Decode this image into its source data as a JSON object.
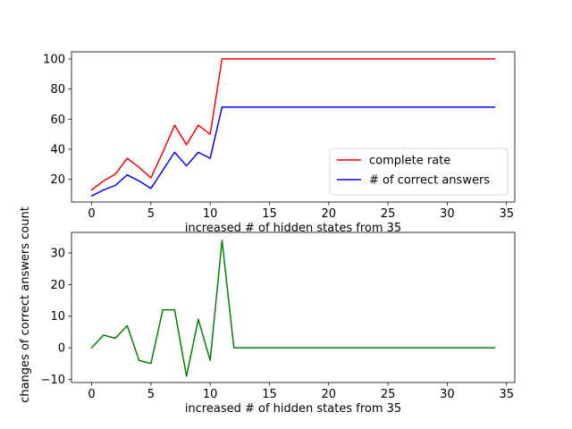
{
  "chart_data": [
    {
      "type": "line",
      "title": "",
      "xlabel": "increased # of hidden states from 35",
      "ylabel": "",
      "xlim": [
        -1.7,
        35.7
      ],
      "ylim": [
        5,
        104.7
      ],
      "xticks": [
        0,
        5,
        10,
        15,
        20,
        25,
        30,
        35
      ],
      "yticks": [
        20,
        40,
        60,
        80,
        100
      ],
      "grid": false,
      "legend": "lower-right",
      "x": [
        0,
        1,
        2,
        3,
        4,
        5,
        6,
        7,
        8,
        9,
        10,
        11,
        12,
        13,
        14,
        15,
        16,
        17,
        18,
        19,
        20,
        21,
        22,
        23,
        24,
        25,
        26,
        27,
        28,
        29,
        30,
        31,
        32,
        33,
        34
      ],
      "series": [
        {
          "name": "complete rate",
          "color": "#ff0000",
          "values": [
            13,
            19,
            23.5,
            34,
            28,
            21,
            38,
            56,
            43,
            56,
            50,
            100,
            100,
            100,
            100,
            100,
            100,
            100,
            100,
            100,
            100,
            100,
            100,
            100,
            100,
            100,
            100,
            100,
            100,
            100,
            100,
            100,
            100,
            100,
            100
          ]
        },
        {
          "name": "# of correct answers",
          "color": "#0000ff",
          "values": [
            9,
            13,
            16,
            23,
            19,
            14,
            26,
            38,
            29,
            38,
            34,
            68,
            68,
            68,
            68,
            68,
            68,
            68,
            68,
            68,
            68,
            68,
            68,
            68,
            68,
            68,
            68,
            68,
            68,
            68,
            68,
            68,
            68,
            68,
            68
          ]
        }
      ]
    },
    {
      "type": "line",
      "title": "",
      "xlabel": "increased # of hidden states from 35",
      "ylabel": "changes of correct answers count",
      "xlim": [
        -1.7,
        35.7
      ],
      "ylim": [
        -11,
        36.5
      ],
      "xticks": [
        0,
        5,
        10,
        15,
        20,
        25,
        30,
        35
      ],
      "yticks": [
        -10,
        0,
        10,
        20,
        30
      ],
      "grid": false,
      "legend": "none",
      "x": [
        0,
        1,
        2,
        3,
        4,
        5,
        6,
        7,
        8,
        9,
        10,
        11,
        12,
        13,
        14,
        15,
        16,
        17,
        18,
        19,
        20,
        21,
        22,
        23,
        24,
        25,
        26,
        27,
        28,
        29,
        30,
        31,
        32,
        33,
        34
      ],
      "series": [
        {
          "color": "#008000",
          "values": [
            0,
            4,
            3,
            7,
            -4,
            -5,
            12,
            12,
            -9,
            9,
            -4,
            34,
            0,
            0,
            0,
            0,
            0,
            0,
            0,
            0,
            0,
            0,
            0,
            0,
            0,
            0,
            0,
            0,
            0,
            0,
            0,
            0,
            0,
            0,
            0
          ]
        }
      ]
    }
  ]
}
